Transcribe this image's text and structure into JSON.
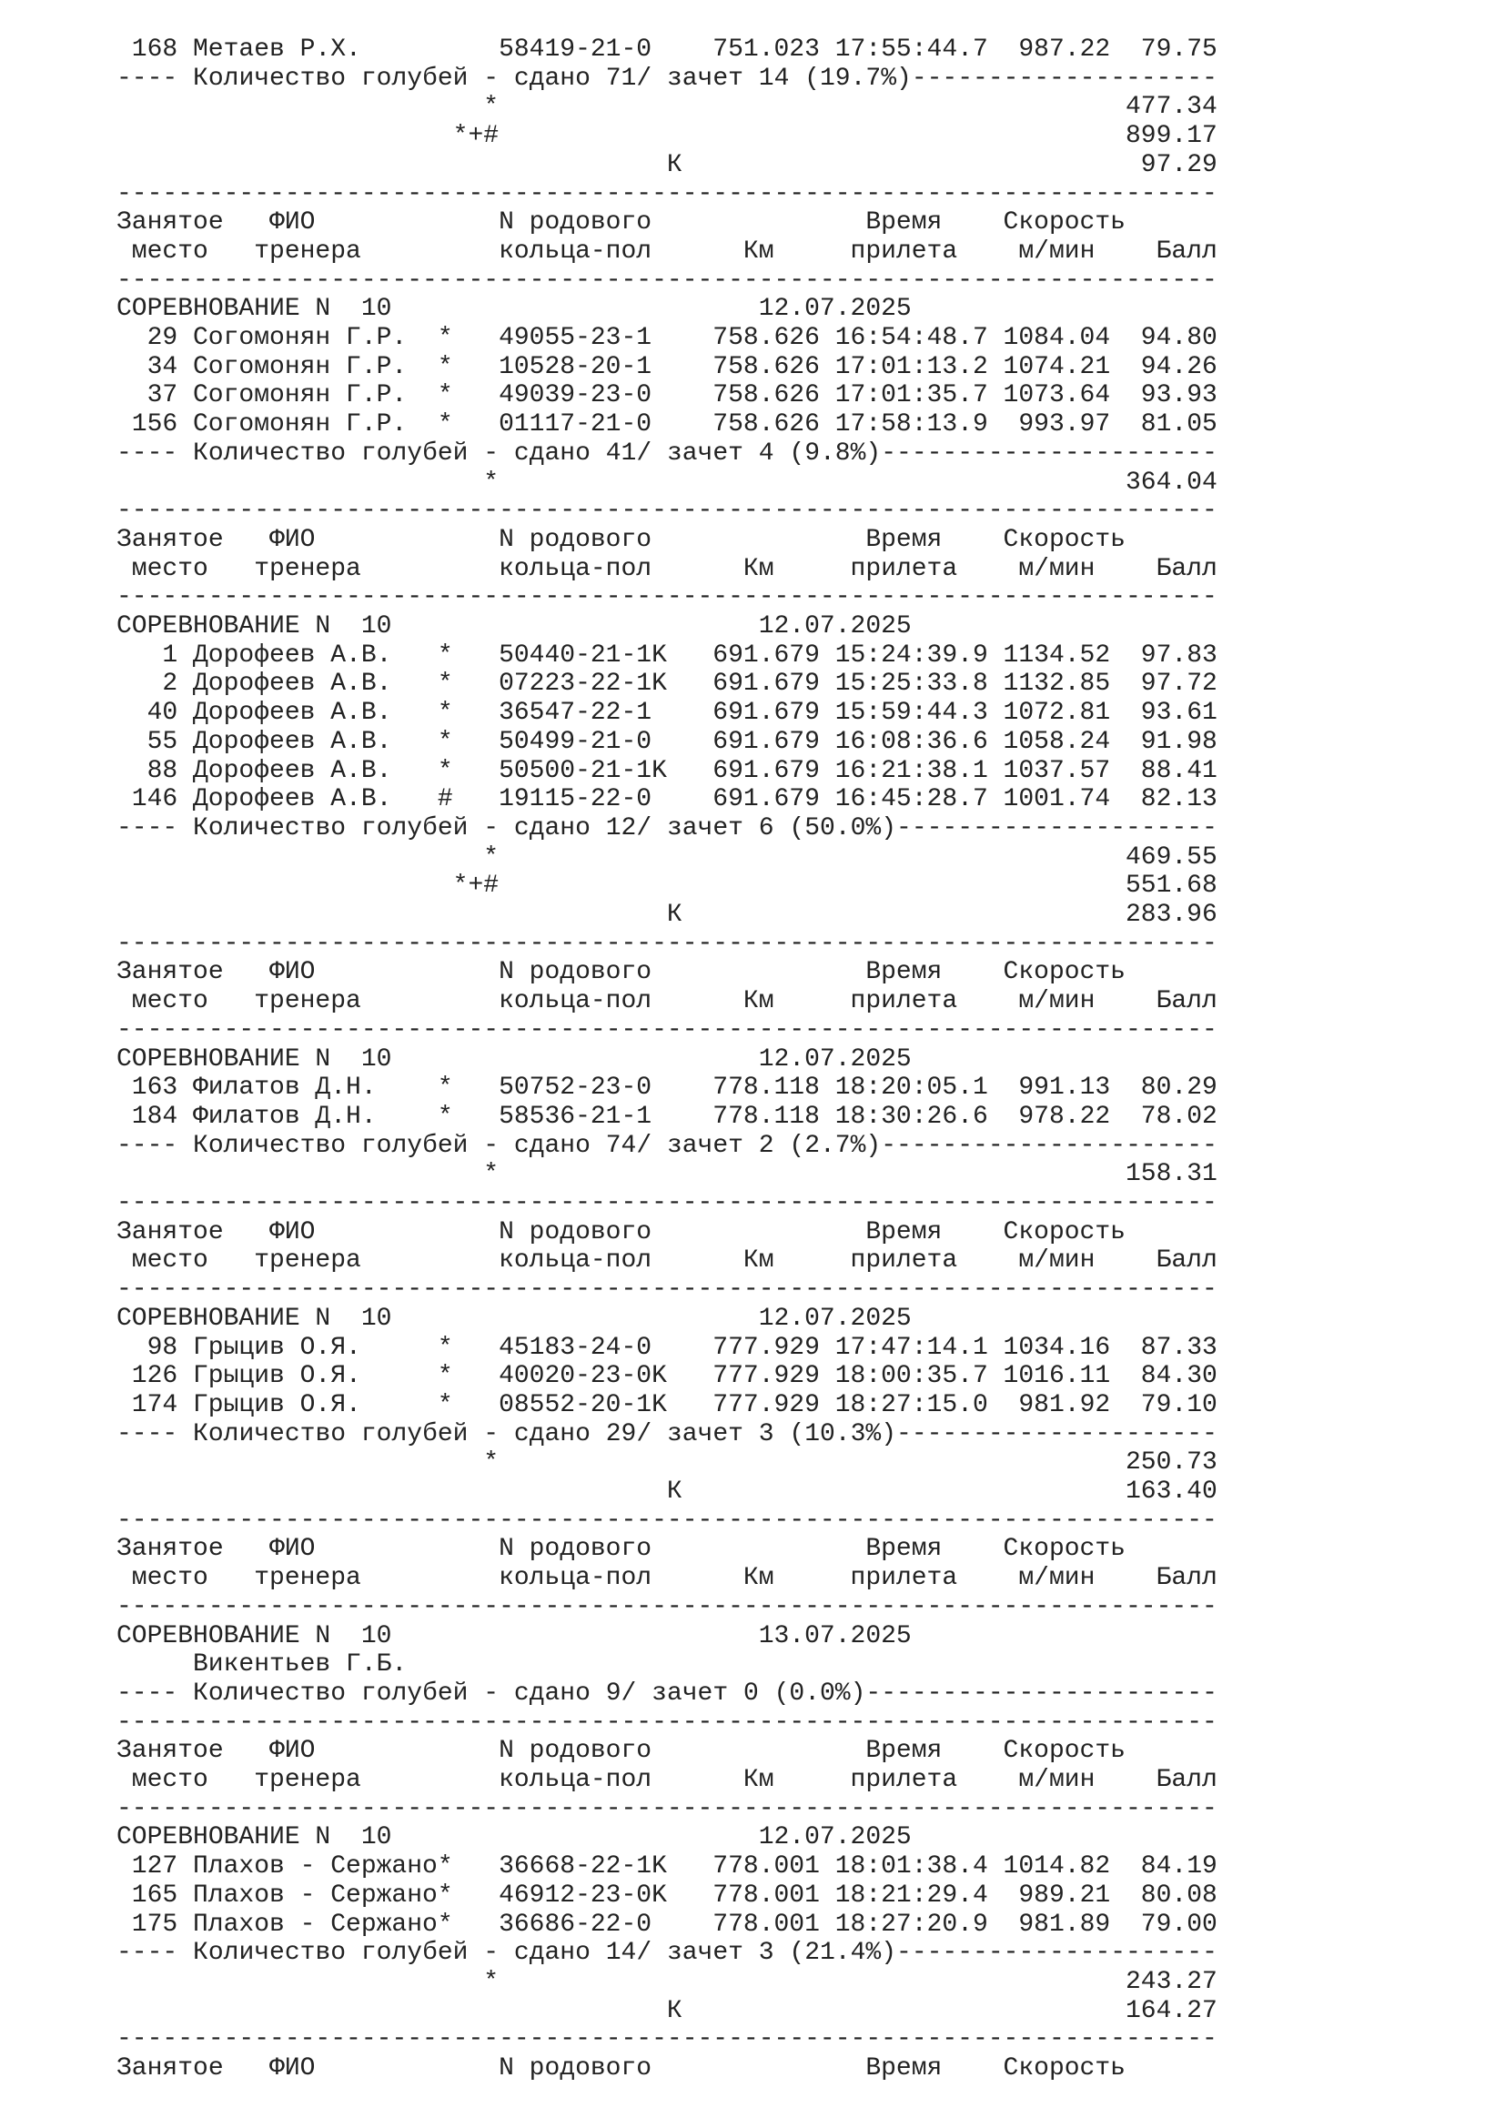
{
  "header": {
    "place_top": "Занятое",
    "place_bottom": "место",
    "name_top": "ФИО",
    "name_bottom": "тренера",
    "ring_top": "N родового",
    "ring_bottom": "кольца-пол",
    "km": "Км",
    "time_top": "Время",
    "time_bottom": "прилета",
    "speed_top": "Скорость",
    "speed_bottom": "м/мин",
    "points": "Балл"
  },
  "competition_label": "СОРЕВНОВАНИЕ N",
  "summary_label": "Количество голубей - сдано",
  "credit_label": "зачет",
  "blocks": [
    {
      "rows": [
        {
          "place": "168",
          "name": "Метаев Р.Х.",
          "flag": "",
          "ring": "58419-21-0",
          "km": "751.023",
          "time": "17:55:44.7",
          "speed": "987.22",
          "points": "79.75"
        }
      ],
      "summary": {
        "submitted": "71",
        "credited": "14",
        "percent": "19.7%"
      },
      "totals": [
        {
          "mark": "*",
          "value": "477.34"
        },
        {
          "mark": "*+#",
          "value": "899.17"
        },
        {
          "mark": "К",
          "value": "97.29"
        }
      ]
    },
    {
      "competition": "10",
      "date": "12.07.2025",
      "rows": [
        {
          "place": "29",
          "name": "Согомонян Г.Р.",
          "flag": "*",
          "ring": "49055-23-1",
          "km": "758.626",
          "time": "16:54:48.7",
          "speed": "1084.04",
          "points": "94.80"
        },
        {
          "place": "34",
          "name": "Согомонян Г.Р.",
          "flag": "*",
          "ring": "10528-20-1",
          "km": "758.626",
          "time": "17:01:13.2",
          "speed": "1074.21",
          "points": "94.26"
        },
        {
          "place": "37",
          "name": "Согомонян Г.Р.",
          "flag": "*",
          "ring": "49039-23-0",
          "km": "758.626",
          "time": "17:01:35.7",
          "speed": "1073.64",
          "points": "93.93"
        },
        {
          "place": "156",
          "name": "Согомонян Г.Р.",
          "flag": "*",
          "ring": "01117-21-0",
          "km": "758.626",
          "time": "17:58:13.9",
          "speed": "993.97",
          "points": "81.05"
        }
      ],
      "summary": {
        "submitted": "41",
        "credited": "4",
        "percent": "9.8%"
      },
      "totals": [
        {
          "mark": "*",
          "value": "364.04"
        }
      ]
    },
    {
      "competition": "10",
      "date": "12.07.2025",
      "rows": [
        {
          "place": "1",
          "name": "Дорофеев А.В.",
          "flag": "*",
          "ring": "50440-21-1K",
          "km": "691.679",
          "time": "15:24:39.9",
          "speed": "1134.52",
          "points": "97.83"
        },
        {
          "place": "2",
          "name": "Дорофеев А.В.",
          "flag": "*",
          "ring": "07223-22-1K",
          "km": "691.679",
          "time": "15:25:33.8",
          "speed": "1132.85",
          "points": "97.72"
        },
        {
          "place": "40",
          "name": "Дорофеев А.В.",
          "flag": "*",
          "ring": "36547-22-1",
          "km": "691.679",
          "time": "15:59:44.3",
          "speed": "1072.81",
          "points": "93.61"
        },
        {
          "place": "55",
          "name": "Дорофеев А.В.",
          "flag": "*",
          "ring": "50499-21-0",
          "km": "691.679",
          "time": "16:08:36.6",
          "speed": "1058.24",
          "points": "91.98"
        },
        {
          "place": "88",
          "name": "Дорофеев А.В.",
          "flag": "*",
          "ring": "50500-21-1K",
          "km": "691.679",
          "time": "16:21:38.1",
          "speed": "1037.57",
          "points": "88.41"
        },
        {
          "place": "146",
          "name": "Дорофеев А.В.",
          "flag": "#",
          "ring": "19115-22-0",
          "km": "691.679",
          "time": "16:45:28.7",
          "speed": "1001.74",
          "points": "82.13"
        }
      ],
      "summary": {
        "submitted": "12",
        "credited": "6",
        "percent": "50.0%"
      },
      "totals": [
        {
          "mark": "*",
          "value": "469.55"
        },
        {
          "mark": "*+#",
          "value": "551.68"
        },
        {
          "mark": "К",
          "value": "283.96"
        }
      ]
    },
    {
      "competition": "10",
      "date": "12.07.2025",
      "rows": [
        {
          "place": "163",
          "name": "Филатов Д.Н.",
          "flag": "*",
          "ring": "50752-23-0",
          "km": "778.118",
          "time": "18:20:05.1",
          "speed": "991.13",
          "points": "80.29"
        },
        {
          "place": "184",
          "name": "Филатов Д.Н.",
          "flag": "*",
          "ring": "58536-21-1",
          "km": "778.118",
          "time": "18:30:26.6",
          "speed": "978.22",
          "points": "78.02"
        }
      ],
      "summary": {
        "submitted": "74",
        "credited": "2",
        "percent": "2.7%"
      },
      "totals": [
        {
          "mark": "*",
          "value": "158.31"
        }
      ]
    },
    {
      "competition": "10",
      "date": "12.07.2025",
      "rows": [
        {
          "place": "98",
          "name": "Грыцив О.Я.",
          "flag": "*",
          "ring": "45183-24-0",
          "km": "777.929",
          "time": "17:47:14.1",
          "speed": "1034.16",
          "points": "87.33"
        },
        {
          "place": "126",
          "name": "Грыцив О.Я.",
          "flag": "*",
          "ring": "40020-23-0K",
          "km": "777.929",
          "time": "18:00:35.7",
          "speed": "1016.11",
          "points": "84.30"
        },
        {
          "place": "174",
          "name": "Грыцив О.Я.",
          "flag": "*",
          "ring": "08552-20-1K",
          "km": "777.929",
          "time": "18:27:15.0",
          "speed": "981.92",
          "points": "79.10"
        }
      ],
      "summary": {
        "submitted": "29",
        "credited": "3",
        "percent": "10.3%"
      },
      "totals": [
        {
          "mark": "*",
          "value": "250.73"
        },
        {
          "mark": "К",
          "value": "163.40"
        }
      ]
    },
    {
      "competition": "10",
      "date": "13.07.2025",
      "trainer_only": "Викентьев Г.Б.",
      "rows": [],
      "summary": {
        "submitted": "9",
        "credited": "0",
        "percent": "0.0%"
      },
      "totals": []
    },
    {
      "competition": "10",
      "date": "12.07.2025",
      "rows": [
        {
          "place": "127",
          "name": "Плахов - Сержано",
          "flag": "*",
          "ring": "36668-22-1K",
          "km": "778.001",
          "time": "18:01:38.4",
          "speed": "1014.82",
          "points": "84.19"
        },
        {
          "place": "165",
          "name": "Плахов - Сержано",
          "flag": "*",
          "ring": "46912-23-0K",
          "km": "778.001",
          "time": "18:21:29.4",
          "speed": "989.21",
          "points": "80.08"
        },
        {
          "place": "175",
          "name": "Плахов - Сержано",
          "flag": "*",
          "ring": "36686-22-0",
          "km": "778.001",
          "time": "18:27:20.9",
          "speed": "981.89",
          "points": "79.00"
        }
      ],
      "summary": {
        "submitted": "14",
        "credited": "3",
        "percent": "21.4%"
      },
      "totals": [
        {
          "mark": "*",
          "value": "243.27"
        },
        {
          "mark": "К",
          "value": "164.27"
        }
      ]
    }
  ]
}
